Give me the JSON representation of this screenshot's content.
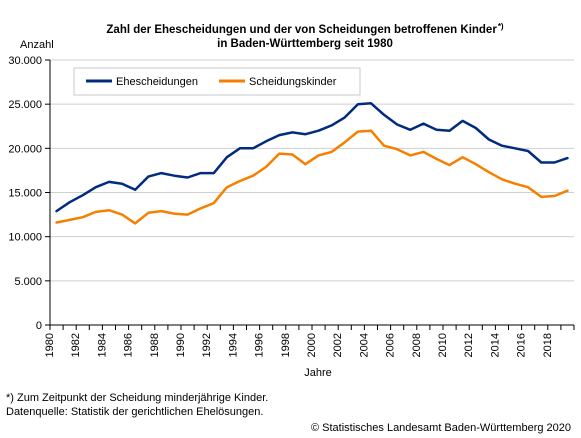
{
  "chart_data": {
    "type": "line",
    "title_line1": "Zahl der Ehescheidungen und der von Scheidungen betroffenen Kinder",
    "title_sup": "*)",
    "title_line2": "in Baden-Württemberg seit 1980",
    "ylabel": "Anzahl",
    "xlabel": "Jahre",
    "ylim": [
      0,
      30000
    ],
    "yticks": [
      0,
      5000,
      10000,
      15000,
      20000,
      25000,
      30000
    ],
    "ytick_labels": [
      "0",
      "5.000",
      "10.000",
      "15.000",
      "20.000",
      "25.000",
      "30.000"
    ],
    "xticks": [
      1980,
      1982,
      1984,
      1986,
      1988,
      1990,
      1992,
      1994,
      1996,
      1998,
      2000,
      2002,
      2004,
      2006,
      2008,
      2010,
      2012,
      2014,
      2016,
      2018
    ],
    "grid": true,
    "legend_position": "top-left",
    "x": [
      1980,
      1981,
      1982,
      1983,
      1984,
      1985,
      1986,
      1987,
      1988,
      1989,
      1990,
      1991,
      1992,
      1993,
      1994,
      1995,
      1996,
      1997,
      1998,
      1999,
      2000,
      2001,
      2002,
      2003,
      2004,
      2005,
      2006,
      2007,
      2008,
      2009,
      2010,
      2011,
      2012,
      2013,
      2014,
      2015,
      2016,
      2017,
      2018,
      2019
    ],
    "series": [
      {
        "name": "Ehescheidungen",
        "color": "#002b7f",
        "values": [
          12900,
          13900,
          14700,
          15600,
          16200,
          16000,
          15300,
          16800,
          17200,
          16900,
          16700,
          17200,
          17200,
          19000,
          20000,
          20000,
          20800,
          21500,
          21800,
          21600,
          22000,
          22600,
          23500,
          25000,
          25100,
          23800,
          22700,
          22100,
          22800,
          22100,
          22000,
          23100,
          22300,
          21000,
          20300,
          20000,
          19700,
          18400,
          18400,
          18900
        ]
      },
      {
        "name": "Scheidungskinder",
        "color": "#f77f00",
        "values": [
          11600,
          11900,
          12200,
          12800,
          13000,
          12500,
          11500,
          12700,
          12900,
          12600,
          12500,
          13200,
          13800,
          15600,
          16300,
          16900,
          17900,
          19400,
          19300,
          18200,
          19200,
          19600,
          20700,
          21900,
          22000,
          20300,
          19900,
          19200,
          19600,
          18800,
          18100,
          19000,
          18200,
          17300,
          16500,
          16000,
          15600,
          14500,
          14600,
          15200
        ]
      }
    ]
  },
  "footnotes": {
    "line1": "*) Zum Zeitpunkt der Scheidung minderjährige Kinder.",
    "line2": "Datenquelle: Statistik der gerichtlichen Ehelösungen.",
    "copyright": "© Statistisches Landesamt Baden-Württemberg 2020"
  }
}
